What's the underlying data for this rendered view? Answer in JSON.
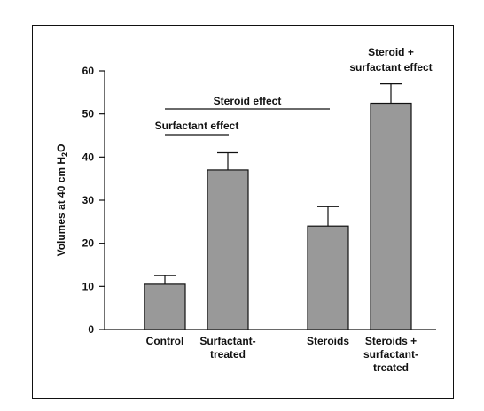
{
  "chart_data": {
    "type": "bar",
    "title": "",
    "xlabel": "",
    "ylabel": "Volumes at 40 cm H",
    "ylabel_subscript": "2",
    "ylabel_suffix": "O",
    "ylim": [
      0,
      60
    ],
    "yticks": [
      "0",
      "10",
      "20",
      "30",
      "40",
      "50",
      "60"
    ],
    "grid": false,
    "categories": [
      [
        "Control"
      ],
      [
        "Surfactant-",
        "treated"
      ],
      [
        "Steroids"
      ],
      [
        "Steroids +",
        "surfactant-",
        "treated"
      ]
    ],
    "values": [
      10.5,
      37,
      24,
      52.5
    ],
    "error_upper": [
      12.5,
      41,
      28.5,
      57
    ],
    "bar_color": "#999999",
    "annotations": {
      "steroid_effect": "Steroid effect",
      "surfactant_effect": "Surfactant effect",
      "combined_effect_line1": "Steroid +",
      "combined_effect_line2": "surfactant effect"
    }
  }
}
